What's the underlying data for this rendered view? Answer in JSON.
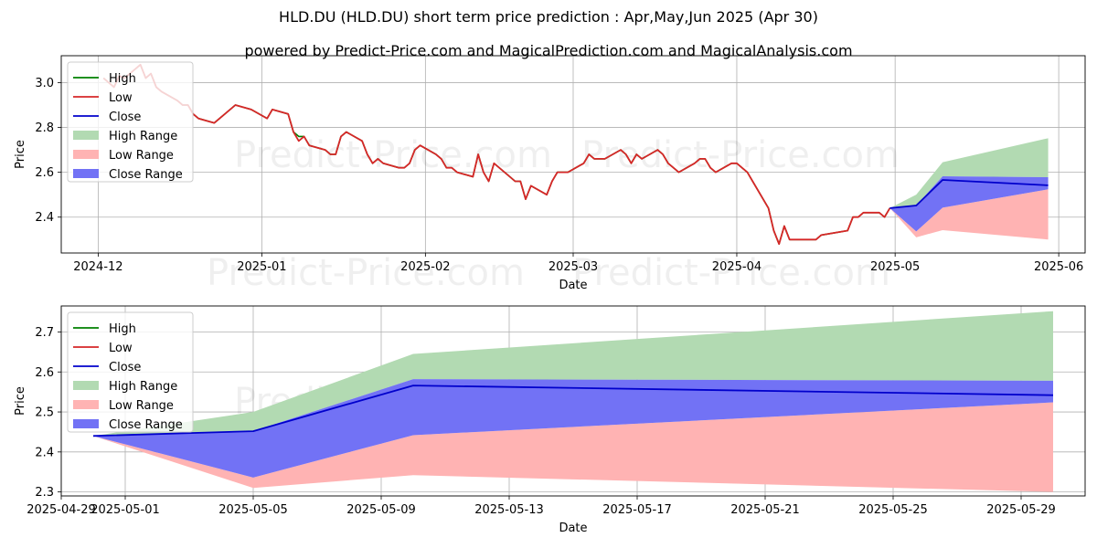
{
  "title": "HLD.DU (HLD.DU) short term price prediction : Apr,May,Jun 2025 (Apr 30)",
  "subtitle": "powered by Predict-Price.com and MagicalPrediction.com and MagicalAnalysis.com",
  "watermark": "Predict-Price.com",
  "colors": {
    "high": "#008000",
    "low": "#d62728",
    "close": "#0000cc",
    "high_range": "#b2dab2",
    "low_range": "#ffb3b3",
    "close_range": "#7272f5",
    "grid": "#b0b0b0"
  },
  "chart_data": [
    {
      "type": "line",
      "panel": "top",
      "xlabel": "Date",
      "ylabel": "Price",
      "x_ticks": [
        "2024-12",
        "2025-01",
        "2025-02",
        "2025-03",
        "2025-04",
        "2025-05",
        "2025-06"
      ],
      "y_ticks": [
        "2.4",
        "2.6",
        "2.8",
        "3.0"
      ],
      "xlim": [
        "2024-11-24",
        "2025-06-06"
      ],
      "ylim": [
        2.24,
        3.12
      ],
      "grid": true,
      "legend": "top-left",
      "legend_entries": [
        "High",
        "Low",
        "Close",
        "High Range",
        "Low Range",
        "Close Range"
      ],
      "history": {
        "dates": [
          "2024-12-02",
          "2024-12-03",
          "2024-12-04",
          "2024-12-05",
          "2024-12-06",
          "2024-12-09",
          "2024-12-10",
          "2024-12-11",
          "2024-12-12",
          "2024-12-13",
          "2024-12-16",
          "2024-12-17",
          "2024-12-18",
          "2024-12-19",
          "2024-12-20",
          "2024-12-23",
          "2024-12-27",
          "2024-12-30",
          "2025-01-02",
          "2025-01-03",
          "2025-01-06",
          "2025-01-07",
          "2025-01-08",
          "2025-01-09",
          "2025-01-10",
          "2025-01-13",
          "2025-01-14",
          "2025-01-15",
          "2025-01-16",
          "2025-01-17",
          "2025-01-20",
          "2025-01-21",
          "2025-01-22",
          "2025-01-23",
          "2025-01-24",
          "2025-01-27",
          "2025-01-28",
          "2025-01-29",
          "2025-01-30",
          "2025-01-31",
          "2025-02-03",
          "2025-02-04",
          "2025-02-05",
          "2025-02-06",
          "2025-02-07",
          "2025-02-10",
          "2025-02-11",
          "2025-02-12",
          "2025-02-13",
          "2025-02-14",
          "2025-02-17",
          "2025-02-18",
          "2025-02-19",
          "2025-02-20",
          "2025-02-21",
          "2025-02-24",
          "2025-02-25",
          "2025-02-26",
          "2025-02-27",
          "2025-02-28",
          "2025-03-03",
          "2025-03-04",
          "2025-03-05",
          "2025-03-06",
          "2025-03-07",
          "2025-03-10",
          "2025-03-11",
          "2025-03-12",
          "2025-03-13",
          "2025-03-14",
          "2025-03-17",
          "2025-03-18",
          "2025-03-19",
          "2025-03-20",
          "2025-03-21",
          "2025-03-24",
          "2025-03-25",
          "2025-03-26",
          "2025-03-27",
          "2025-03-28",
          "2025-03-31",
          "2025-04-01",
          "2025-04-02",
          "2025-04-03",
          "2025-04-04",
          "2025-04-07",
          "2025-04-08",
          "2025-04-09",
          "2025-04-10",
          "2025-04-11",
          "2025-04-14",
          "2025-04-15",
          "2025-04-16",
          "2025-04-17",
          "2025-04-22",
          "2025-04-23",
          "2025-04-24",
          "2025-04-25",
          "2025-04-28",
          "2025-04-29",
          "2025-04-30"
        ],
        "low": [
          3.02,
          3.0,
          2.98,
          3.03,
          3.02,
          3.08,
          3.02,
          3.04,
          2.98,
          2.96,
          2.92,
          2.9,
          2.9,
          2.86,
          2.84,
          2.82,
          2.9,
          2.88,
          2.84,
          2.88,
          2.86,
          2.78,
          2.74,
          2.76,
          2.72,
          2.7,
          2.68,
          2.68,
          2.76,
          2.78,
          2.74,
          2.68,
          2.64,
          2.66,
          2.64,
          2.62,
          2.62,
          2.64,
          2.7,
          2.72,
          2.68,
          2.66,
          2.62,
          2.62,
          2.6,
          2.58,
          2.68,
          2.6,
          2.56,
          2.64,
          2.58,
          2.56,
          2.56,
          2.48,
          2.54,
          2.5,
          2.56,
          2.6,
          2.6,
          2.6,
          2.64,
          2.68,
          2.66,
          2.66,
          2.66,
          2.7,
          2.68,
          2.64,
          2.68,
          2.66,
          2.7,
          2.68,
          2.64,
          2.62,
          2.6,
          2.64,
          2.66,
          2.66,
          2.62,
          2.6,
          2.64,
          2.64,
          2.62,
          2.6,
          2.56,
          2.44,
          2.34,
          2.28,
          2.36,
          2.3,
          2.3,
          2.3,
          2.3,
          2.32,
          2.34,
          2.4,
          2.4,
          2.42,
          2.42,
          2.4,
          2.44
        ],
        "high": [
          3.02,
          3.0,
          2.98,
          3.03,
          3.02,
          3.08,
          3.02,
          3.04,
          2.98,
          2.96,
          2.92,
          2.9,
          2.9,
          2.86,
          2.84,
          2.82,
          2.9,
          2.88,
          2.84,
          2.88,
          2.86,
          2.78,
          2.76,
          2.76,
          2.72,
          2.7,
          2.68,
          2.68,
          2.76,
          2.78,
          2.74,
          2.68,
          2.64,
          2.66,
          2.64,
          2.62,
          2.62,
          2.64,
          2.7,
          2.72,
          2.68,
          2.66,
          2.62,
          2.62,
          2.6,
          2.58,
          2.68,
          2.6,
          2.56,
          2.64,
          2.58,
          2.56,
          2.56,
          2.48,
          2.54,
          2.5,
          2.56,
          2.6,
          2.6,
          2.6,
          2.64,
          2.68,
          2.66,
          2.66,
          2.66,
          2.7,
          2.68,
          2.64,
          2.68,
          2.66,
          2.7,
          2.68,
          2.64,
          2.62,
          2.6,
          2.64,
          2.66,
          2.66,
          2.62,
          2.6,
          2.64,
          2.64,
          2.62,
          2.6,
          2.56,
          2.44,
          2.34,
          2.28,
          2.36,
          2.3,
          2.3,
          2.3,
          2.3,
          2.32,
          2.34,
          2.4,
          2.4,
          2.42,
          2.42,
          2.4,
          2.44
        ]
      },
      "forecast": {
        "dates": [
          "2025-04-30",
          "2025-05-05",
          "2025-05-10",
          "2025-05-30"
        ],
        "close": [
          2.44,
          2.452,
          2.566,
          2.542
        ],
        "high_range_top": [
          2.44,
          2.5,
          2.645,
          2.752
        ],
        "close_range_top": [
          2.44,
          2.452,
          2.582,
          2.578
        ],
        "close_range_bottom": [
          2.44,
          2.336,
          2.442,
          2.524
        ],
        "low_range_bottom": [
          2.44,
          2.31,
          2.342,
          2.3
        ]
      }
    },
    {
      "type": "line",
      "panel": "bottom",
      "xlabel": "Date",
      "ylabel": "Price",
      "x_ticks": [
        "2025-04-29",
        "2025-05-01",
        "2025-05-05",
        "2025-05-09",
        "2025-05-13",
        "2025-05-17",
        "2025-05-21",
        "2025-05-25",
        "2025-05-29"
      ],
      "y_ticks": [
        "2.3",
        "2.4",
        "2.5",
        "2.6",
        "2.7"
      ],
      "xlim": [
        "2025-04-29",
        "2025-05-31"
      ],
      "ylim": [
        2.29,
        2.765
      ],
      "grid": true,
      "legend": "top-left",
      "legend_entries": [
        "High",
        "Low",
        "Close",
        "High Range",
        "Low Range",
        "Close Range"
      ]
    }
  ]
}
